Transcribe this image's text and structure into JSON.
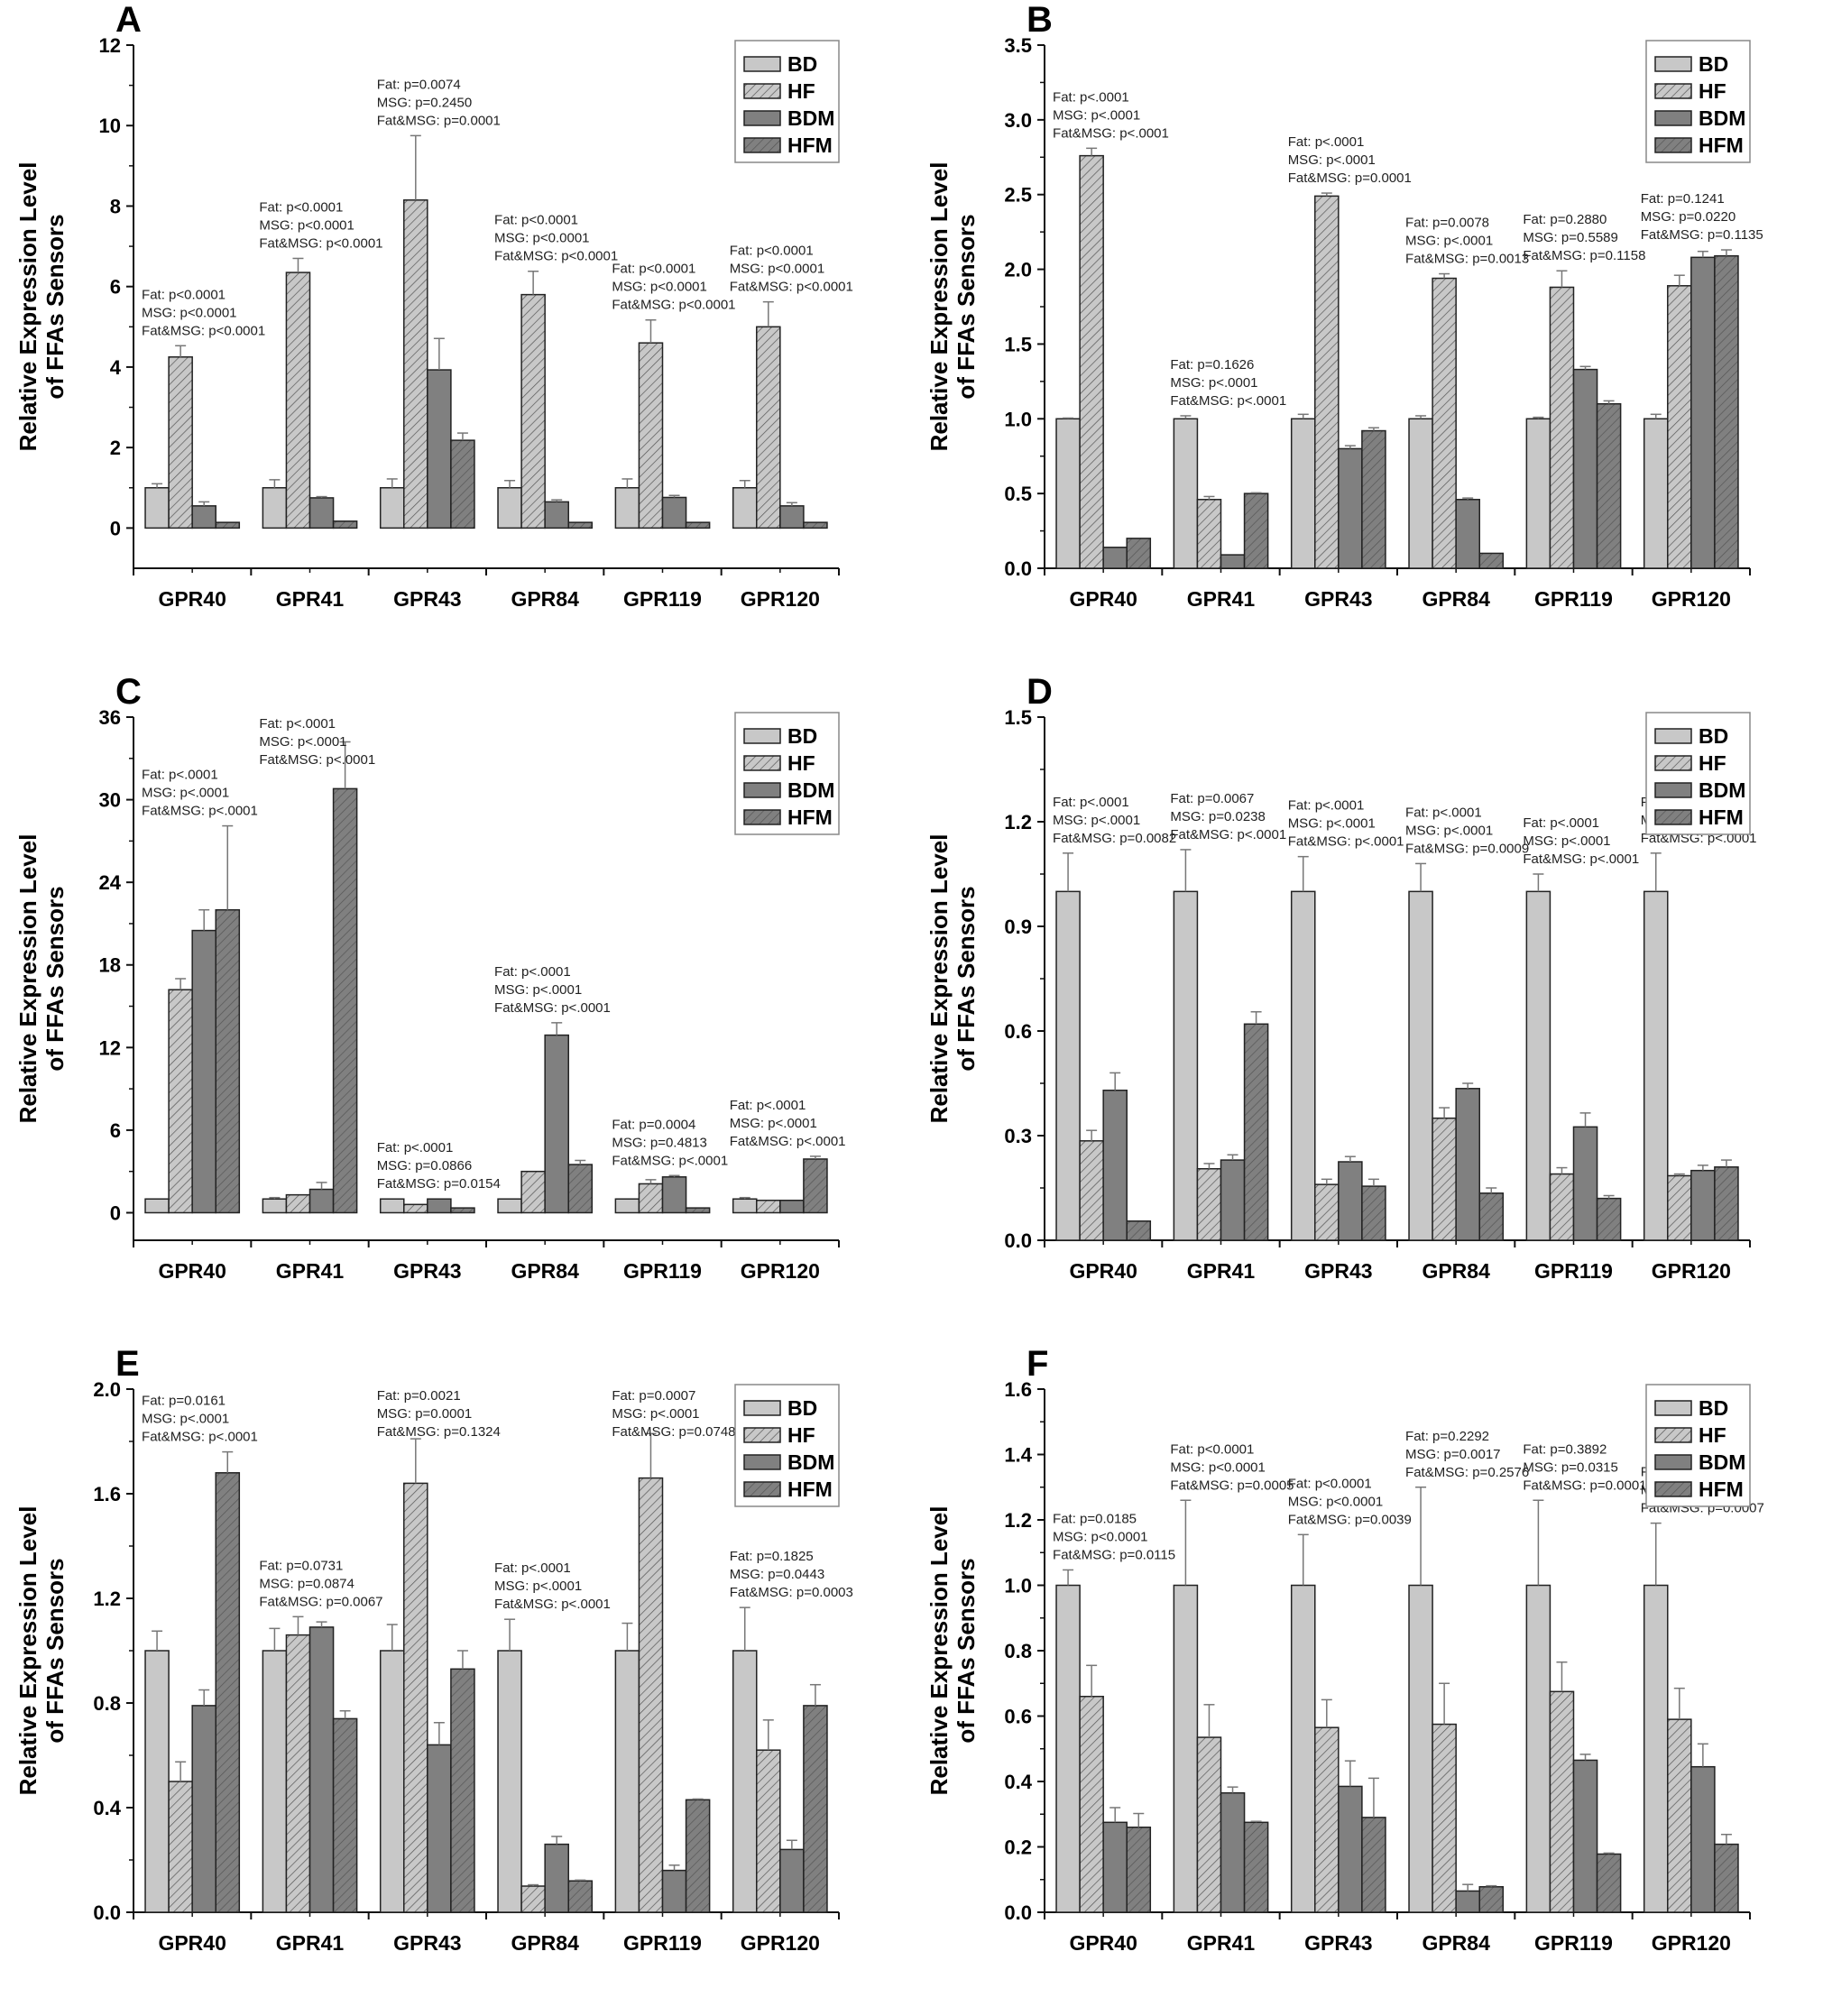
{
  "figure": {
    "ylabel_line1": "Relative Expression Level",
    "ylabel_line2": "of FFAs Sensors",
    "legend": [
      {
        "name": "BD",
        "fill": "#c8c8c8",
        "hatch": false
      },
      {
        "name": "HF",
        "fill": "#c8c8c8",
        "hatch": true
      },
      {
        "name": "BDM",
        "fill": "#808080",
        "hatch": false
      },
      {
        "name": "HFM",
        "fill": "#808080",
        "hatch": true
      }
    ]
  },
  "chart_data": [
    {
      "panel": "A",
      "type": "bar",
      "xlabel": "",
      "ylabel": "Relative Expression Level of FFAs Sensors",
      "categories": [
        "GPR40",
        "GPR41",
        "GPR43",
        "GPR84",
        "GPR119",
        "GPR120"
      ],
      "ylim": [
        -1,
        12
      ],
      "yticks": [
        0,
        2,
        4,
        6,
        8,
        10,
        12
      ],
      "legend_position": "top-right",
      "series": [
        {
          "name": "BD",
          "values": [
            1.0,
            1.0,
            1.0,
            1.0,
            1.0,
            1.0
          ],
          "errors": [
            0.1,
            0.2,
            0.22,
            0.18,
            0.22,
            0.18
          ]
        },
        {
          "name": "HF",
          "values": [
            4.25,
            6.35,
            8.15,
            5.8,
            4.6,
            5.0
          ],
          "errors": [
            0.28,
            0.35,
            1.6,
            0.58,
            0.57,
            0.62
          ]
        },
        {
          "name": "BDM",
          "values": [
            0.55,
            0.75,
            3.93,
            0.65,
            0.76,
            0.55
          ],
          "errors": [
            0.1,
            0.03,
            0.78,
            0.05,
            0.05,
            0.08
          ]
        },
        {
          "name": "HFM",
          "values": [
            0.14,
            0.17,
            2.18,
            0.14,
            0.14,
            0.14
          ],
          "errors": [
            0,
            0,
            0.18,
            0,
            0,
            0
          ]
        }
      ],
      "annotations": [
        {
          "category": "GPR40",
          "lines": [
            "Fat: p<0.0001",
            "MSG: p<0.0001",
            "Fat&MSG: p<0.0001"
          ]
        },
        {
          "category": "GPR41",
          "lines": [
            "Fat: p<0.0001",
            "MSG: p<0.0001",
            "Fat&MSG: p<0.0001"
          ]
        },
        {
          "category": "GPR43",
          "lines": [
            "Fat: p=0.0074",
            "MSG: p=0.2450",
            "Fat&MSG: p=0.0001"
          ]
        },
        {
          "category": "GPR84",
          "lines": [
            "Fat: p<0.0001",
            "MSG: p<0.0001",
            "Fat&MSG: p<0.0001"
          ]
        },
        {
          "category": "GPR119",
          "lines": [
            "Fat: p<0.0001",
            "MSG: p<0.0001",
            "Fat&MSG: p<0.0001"
          ]
        },
        {
          "category": "GPR120",
          "lines": [
            "Fat: p<0.0001",
            "MSG: p<0.0001",
            "Fat&MSG: p<0.0001"
          ]
        }
      ]
    },
    {
      "panel": "B",
      "type": "bar",
      "xlabel": "",
      "ylabel": "Relative Expression Level of FFAs Sensors",
      "categories": [
        "GPR40",
        "GPR41",
        "GPR43",
        "GPR84",
        "GPR119",
        "GPR120"
      ],
      "ylim": [
        0,
        3.5
      ],
      "yticks": [
        0.0,
        0.5,
        1.0,
        1.5,
        2.0,
        2.5,
        3.0,
        3.5
      ],
      "legend_position": "top-right",
      "series": [
        {
          "name": "BD",
          "values": [
            1.0,
            1.0,
            1.0,
            1.0,
            1.0,
            1.0
          ],
          "errors": [
            0.005,
            0.02,
            0.03,
            0.02,
            0.01,
            0.03
          ]
        },
        {
          "name": "HF",
          "values": [
            2.76,
            0.46,
            2.49,
            1.94,
            1.88,
            1.89
          ],
          "errors": [
            0.05,
            0.02,
            0.02,
            0.03,
            0.11,
            0.07
          ]
        },
        {
          "name": "BDM",
          "values": [
            0.14,
            0.09,
            0.8,
            0.46,
            1.33,
            2.08
          ],
          "errors": [
            0,
            0,
            0.02,
            0.01,
            0.02,
            0.04
          ]
        },
        {
          "name": "HFM",
          "values": [
            0.2,
            0.5,
            0.92,
            0.1,
            1.1,
            2.09
          ],
          "errors": [
            0,
            0.005,
            0.02,
            0,
            0.02,
            0.04
          ]
        }
      ],
      "annotations": [
        {
          "category": "GPR40",
          "lines": [
            "Fat: p<.0001",
            "MSG: p<.0001",
            "Fat&MSG: p<.0001"
          ]
        },
        {
          "category": "GPR41",
          "lines": [
            "Fat: p=0.1626",
            "MSG: p<.0001",
            "Fat&MSG: p<.0001"
          ]
        },
        {
          "category": "GPR43",
          "lines": [
            "Fat: p<.0001",
            "MSG: p<.0001",
            "Fat&MSG: p=0.0001"
          ]
        },
        {
          "category": "GPR84",
          "lines": [
            "Fat: p=0.0078",
            "MSG: p<.0001",
            "Fat&MSG: p=0.0013"
          ]
        },
        {
          "category": "GPR119",
          "lines": [
            "Fat: p=0.2880",
            "MSG: p=0.5589",
            "Fat&MSG: p=0.1158"
          ]
        },
        {
          "category": "GPR120",
          "lines": [
            "Fat: p=0.1241",
            "MSG: p=0.0220",
            "Fat&MSG: p=0.1135"
          ]
        }
      ]
    },
    {
      "panel": "C",
      "type": "bar",
      "xlabel": "",
      "ylabel": "Relative Expression Level of FFAs Sensors",
      "categories": [
        "GPR40",
        "GPR41",
        "GPR43",
        "GPR84",
        "GPR119",
        "GPR120"
      ],
      "ylim": [
        -2,
        36
      ],
      "yticks": [
        0,
        6,
        12,
        18,
        24,
        30,
        36
      ],
      "legend_position": "top-right",
      "series": [
        {
          "name": "BD",
          "values": [
            1.0,
            1.0,
            1.0,
            1.0,
            1.0,
            1.0
          ],
          "errors": [
            0,
            0.1,
            0,
            0,
            0,
            0.1
          ]
        },
        {
          "name": "HF",
          "values": [
            16.2,
            1.3,
            0.6,
            3.0,
            2.1,
            0.9
          ],
          "errors": [
            0.8,
            0,
            0,
            0,
            0.3,
            0
          ]
        },
        {
          "name": "BDM",
          "values": [
            20.5,
            1.7,
            1.0,
            12.9,
            2.6,
            0.9
          ],
          "errors": [
            1.5,
            0.5,
            0,
            0.9,
            0.1,
            0
          ]
        },
        {
          "name": "HFM",
          "values": [
            22.0,
            30.8,
            0.35,
            3.5,
            0.35,
            3.9
          ],
          "errors": [
            6.1,
            3.4,
            0,
            0.3,
            0,
            0.2
          ]
        }
      ],
      "annotations": [
        {
          "category": "GPR40",
          "lines": [
            "Fat: p<.0001",
            "MSG: p<.0001",
            "Fat&MSG: p<.0001"
          ]
        },
        {
          "category": "GPR41",
          "lines": [
            "Fat: p<.0001",
            "MSG: p<.0001",
            "Fat&MSG: p<.0001"
          ]
        },
        {
          "category": "GPR43",
          "lines": [
            "Fat: p<.0001",
            "MSG: p=0.0866",
            "Fat&MSG: p=0.0154"
          ]
        },
        {
          "category": "GPR84",
          "lines": [
            "Fat: p<.0001",
            "MSG: p<.0001",
            "Fat&MSG: p<.0001"
          ]
        },
        {
          "category": "GPR119",
          "lines": [
            "Fat: p=0.0004",
            "MSG: p=0.4813",
            "Fat&MSG: p<.0001"
          ]
        },
        {
          "category": "GPR120",
          "lines": [
            "Fat: p<.0001",
            "MSG: p<.0001",
            "Fat&MSG: p<.0001"
          ]
        }
      ]
    },
    {
      "panel": "D",
      "type": "bar",
      "xlabel": "",
      "ylabel": "Relative Expression Level of FFAs Sensors",
      "categories": [
        "GPR40",
        "GPR41",
        "GPR43",
        "GPR84",
        "GPR119",
        "GPR120"
      ],
      "ylim": [
        0,
        1.5
      ],
      "yticks": [
        0.0,
        0.3,
        0.6,
        0.9,
        1.2,
        1.5
      ],
      "legend_position": "top-right",
      "series": [
        {
          "name": "BD",
          "values": [
            1.0,
            1.0,
            1.0,
            1.0,
            1.0,
            1.0
          ],
          "errors": [
            0.11,
            0.12,
            0.1,
            0.08,
            0.05,
            0.11
          ]
        },
        {
          "name": "HF",
          "values": [
            0.285,
            0.205,
            0.16,
            0.35,
            0.19,
            0.185
          ],
          "errors": [
            0.03,
            0.015,
            0.015,
            0.03,
            0.018,
            0.005
          ]
        },
        {
          "name": "BDM",
          "values": [
            0.43,
            0.23,
            0.225,
            0.435,
            0.325,
            0.2
          ],
          "errors": [
            0.05,
            0.015,
            0.015,
            0.015,
            0.04,
            0.015
          ]
        },
        {
          "name": "HFM",
          "values": [
            0.055,
            0.62,
            0.155,
            0.135,
            0.12,
            0.21
          ],
          "errors": [
            0,
            0.035,
            0.02,
            0.015,
            0.008,
            0.02
          ]
        }
      ],
      "annotations": [
        {
          "category": "GPR40",
          "lines": [
            "Fat: p<.0001",
            "MSG: p<.0001",
            "Fat&MSG: p=0.0082"
          ]
        },
        {
          "category": "GPR41",
          "lines": [
            "Fat: p=0.0067",
            "MSG: p=0.0238",
            "Fat&MSG: p<.0001"
          ]
        },
        {
          "category": "GPR43",
          "lines": [
            "Fat: p<.0001",
            "MSG: p<.0001",
            "Fat&MSG: p<.0001"
          ]
        },
        {
          "category": "GPR84",
          "lines": [
            "Fat: p<.0001",
            "MSG: p<.0001",
            "Fat&MSG: p=0.0009"
          ]
        },
        {
          "category": "GPR119",
          "lines": [
            "Fat: p<.0001",
            "MSG: p<.0001",
            "Fat&MSG: p<.0001"
          ]
        },
        {
          "category": "GPR120",
          "lines": [
            "Fat: p<.0001",
            "MSG: p<.0001",
            "Fat&MSG: p<.0001"
          ]
        }
      ]
    },
    {
      "panel": "E",
      "type": "bar",
      "xlabel": "",
      "ylabel": "Relative Expression Level of FFAs Sensors",
      "categories": [
        "GPR40",
        "GPR41",
        "GPR43",
        "GPR84",
        "GPR119",
        "GPR120"
      ],
      "ylim": [
        0,
        2.0
      ],
      "yticks": [
        0.0,
        0.4,
        0.8,
        1.2,
        1.6,
        2.0
      ],
      "legend_position": "top-right",
      "series": [
        {
          "name": "BD",
          "values": [
            1.0,
            1.0,
            1.0,
            1.0,
            1.0,
            1.0
          ],
          "errors": [
            0.075,
            0.085,
            0.1,
            0.12,
            0.105,
            0.165
          ]
        },
        {
          "name": "HF",
          "values": [
            0.5,
            1.06,
            1.64,
            0.1,
            1.66,
            0.62
          ],
          "errors": [
            0.075,
            0.07,
            0.17,
            0.005,
            0.17,
            0.115
          ]
        },
        {
          "name": "BDM",
          "values": [
            0.79,
            1.09,
            0.64,
            0.26,
            0.16,
            0.24
          ],
          "errors": [
            0.06,
            0.02,
            0.085,
            0.03,
            0.02,
            0.035
          ]
        },
        {
          "name": "HFM",
          "values": [
            1.68,
            0.74,
            0.93,
            0.12,
            0.43,
            0.79
          ],
          "errors": [
            0.08,
            0.03,
            0.07,
            0.003,
            0.003,
            0.08
          ]
        }
      ],
      "annotations": [
        {
          "category": "GPR40",
          "lines": [
            "Fat: p=0.0161",
            "MSG: p<.0001",
            "Fat&MSG: p<.0001"
          ]
        },
        {
          "category": "GPR41",
          "lines": [
            "Fat: p=0.0731",
            "MSG: p=0.0874",
            "Fat&MSG: p=0.0067"
          ]
        },
        {
          "category": "GPR43",
          "lines": [
            "Fat: p=0.0021",
            "MSG: p=0.0001",
            "Fat&MSG: p=0.1324"
          ]
        },
        {
          "category": "GPR84",
          "lines": [
            "Fat: p<.0001",
            "MSG: p<.0001",
            "Fat&MSG: p<.0001"
          ]
        },
        {
          "category": "GPR119",
          "lines": [
            "Fat: p=0.0007",
            "MSG: p<.0001",
            "Fat&MSG: p=0.0748"
          ]
        },
        {
          "category": "GPR120",
          "lines": [
            "Fat: p=0.1825",
            "MSG: p=0.0443",
            "Fat&MSG: p=0.0003"
          ]
        }
      ]
    },
    {
      "panel": "F",
      "type": "bar",
      "xlabel": "",
      "ylabel": "Relative Expression Level of FFAs Sensors",
      "categories": [
        "GPR40",
        "GPR41",
        "GPR43",
        "GPR84",
        "GPR119",
        "GPR120"
      ],
      "ylim": [
        0,
        1.6
      ],
      "yticks": [
        0.0,
        0.2,
        0.4,
        0.6,
        0.8,
        1.0,
        1.2,
        1.4,
        1.6
      ],
      "legend_position": "top-right",
      "series": [
        {
          "name": "BD",
          "values": [
            1.0,
            1.0,
            1.0,
            1.0,
            1.0,
            1.0
          ],
          "errors": [
            0.047,
            0.26,
            0.155,
            0.3,
            0.26,
            0.19
          ]
        },
        {
          "name": "HF",
          "values": [
            0.66,
            0.535,
            0.565,
            0.575,
            0.675,
            0.59
          ],
          "errors": [
            0.095,
            0.1,
            0.085,
            0.125,
            0.09,
            0.095
          ]
        },
        {
          "name": "BDM",
          "values": [
            0.275,
            0.365,
            0.385,
            0.065,
            0.465,
            0.445
          ],
          "errors": [
            0.045,
            0.018,
            0.078,
            0.02,
            0.018,
            0.07
          ]
        },
        {
          "name": "HFM",
          "values": [
            0.26,
            0.275,
            0.29,
            0.078,
            0.178,
            0.208
          ],
          "errors": [
            0.042,
            0.003,
            0.12,
            0.003,
            0.003,
            0.03
          ]
        }
      ],
      "annotations": [
        {
          "category": "GPR40",
          "lines": [
            "Fat: p=0.0185",
            "MSG: p<0.0001",
            "Fat&MSG: p=0.0115"
          ]
        },
        {
          "category": "GPR41",
          "lines": [
            "Fat: p<0.0001",
            "MSG: p<0.0001",
            "Fat&MSG: p=0.0005"
          ]
        },
        {
          "category": "GPR43",
          "lines": [
            "Fat: p<0.0001",
            "MSG: p<0.0001",
            "Fat&MSG: p=0.0039"
          ]
        },
        {
          "category": "GPR84",
          "lines": [
            "Fat: p=0.2292",
            "MSG: p=0.0017",
            "Fat&MSG: p=0.2576"
          ]
        },
        {
          "category": "GPR119",
          "lines": [
            "Fat: p=0.3892",
            "MSG: p=0.0315",
            "Fat&MSG: p=0.0001"
          ]
        },
        {
          "category": "GPR120",
          "lines": [
            "Fat: p=0.3817",
            "MSG: p=0.3725",
            "Fat&MSG: p=0.0007"
          ]
        }
      ]
    }
  ]
}
